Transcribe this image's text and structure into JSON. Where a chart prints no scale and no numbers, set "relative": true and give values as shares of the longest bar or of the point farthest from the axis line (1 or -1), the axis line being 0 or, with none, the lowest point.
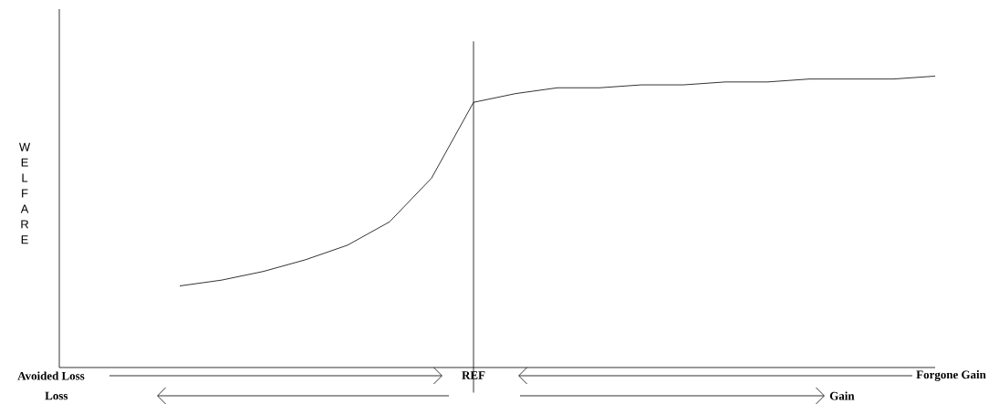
{
  "chart_data": {
    "type": "line",
    "relative": true,
    "color": "#000000",
    "categories": [
      null,
      null,
      null,
      null,
      null,
      null,
      null,
      null,
      null,
      null,
      null,
      null,
      null,
      null,
      null,
      null,
      null,
      null,
      null
    ],
    "values": [
      0.28,
      0.3,
      0.33,
      0.37,
      0.42,
      0.5,
      0.65,
      0.91,
      0.94,
      0.96,
      0.96,
      0.97,
      0.97,
      0.98,
      0.98,
      0.99,
      0.99,
      0.99,
      1.0
    ],
    "annotations": [
      "Avoided Loss",
      "Forgone Gain",
      "Loss",
      "Gain",
      "REF",
      "WELFARE"
    ]
  }
}
